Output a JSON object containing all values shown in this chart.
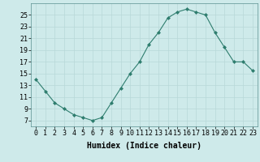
{
  "x": [
    0,
    1,
    2,
    3,
    4,
    5,
    6,
    7,
    8,
    9,
    10,
    11,
    12,
    13,
    14,
    15,
    16,
    17,
    18,
    19,
    20,
    21,
    22,
    23
  ],
  "y": [
    14,
    12,
    10,
    9,
    8,
    7.5,
    7,
    7.5,
    10,
    12.5,
    15,
    17,
    20,
    22,
    24.5,
    25.5,
    26,
    25.5,
    25,
    22,
    19.5,
    17,
    17,
    15.5
  ],
  "line_color": "#2e7d6e",
  "marker_color": "#2e7d6e",
  "bg_color": "#ceeaea",
  "grid_color": "#b8d8d8",
  "xlabel": "Humidex (Indice chaleur)",
  "xlim": [
    -0.5,
    23.5
  ],
  "ylim": [
    6,
    27
  ],
  "yticks": [
    7,
    9,
    11,
    13,
    15,
    17,
    19,
    21,
    23,
    25
  ],
  "xticks": [
    0,
    1,
    2,
    3,
    4,
    5,
    6,
    7,
    8,
    9,
    10,
    11,
    12,
    13,
    14,
    15,
    16,
    17,
    18,
    19,
    20,
    21,
    22,
    23
  ],
  "xtick_labels": [
    "0",
    "1",
    "2",
    "3",
    "4",
    "5",
    "6",
    "7",
    "8",
    "9",
    "10",
    "11",
    "12",
    "13",
    "14",
    "15",
    "16",
    "17",
    "18",
    "19",
    "20",
    "21",
    "22",
    "23"
  ],
  "xlabel_fontsize": 7,
  "tick_fontsize": 6
}
